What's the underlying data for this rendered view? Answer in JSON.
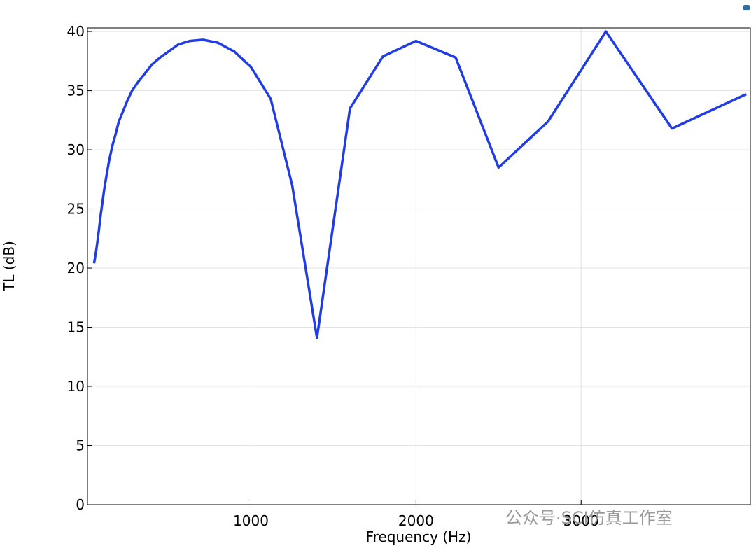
{
  "chart_data": {
    "type": "line",
    "xlabel": "Frequency (Hz)",
    "ylabel": "TL (dB)",
    "watermark": "公众号·SCI仿真工作室",
    "x": [
      50,
      63,
      71,
      80,
      90,
      100,
      112,
      125,
      140,
      160,
      180,
      200,
      224,
      250,
      280,
      315,
      355,
      400,
      450,
      500,
      560,
      630,
      710,
      800,
      900,
      1000,
      1120,
      1250,
      1400,
      1600,
      1800,
      2000,
      2240,
      2500,
      2800,
      3150,
      3550,
      4000
    ],
    "series": [
      {
        "color": "#1f3ce6",
        "values": [
          20.4,
          21.5,
          22.3,
          23.3,
          24.5,
          25.5,
          26.7,
          27.8,
          29.0,
          30.3,
          31.3,
          32.4,
          33.2,
          34.1,
          35.0,
          35.7,
          36.4,
          37.2,
          37.8,
          38.3,
          38.9,
          39.2,
          39.3,
          39.05,
          38.3,
          37.0,
          34.3,
          27.0,
          14.1,
          33.5,
          37.9,
          39.2,
          37.8,
          28.5,
          32.4,
          40.0,
          31.8,
          34.7
        ]
      }
    ],
    "xlim": [
      10,
      4025
    ],
    "xticks": [
      1000,
      2000,
      3000
    ],
    "ylim": [
      0,
      40.3
    ],
    "yticks": [
      0,
      5,
      10,
      15,
      20,
      25,
      30,
      35,
      40
    ],
    "grid": true
  }
}
